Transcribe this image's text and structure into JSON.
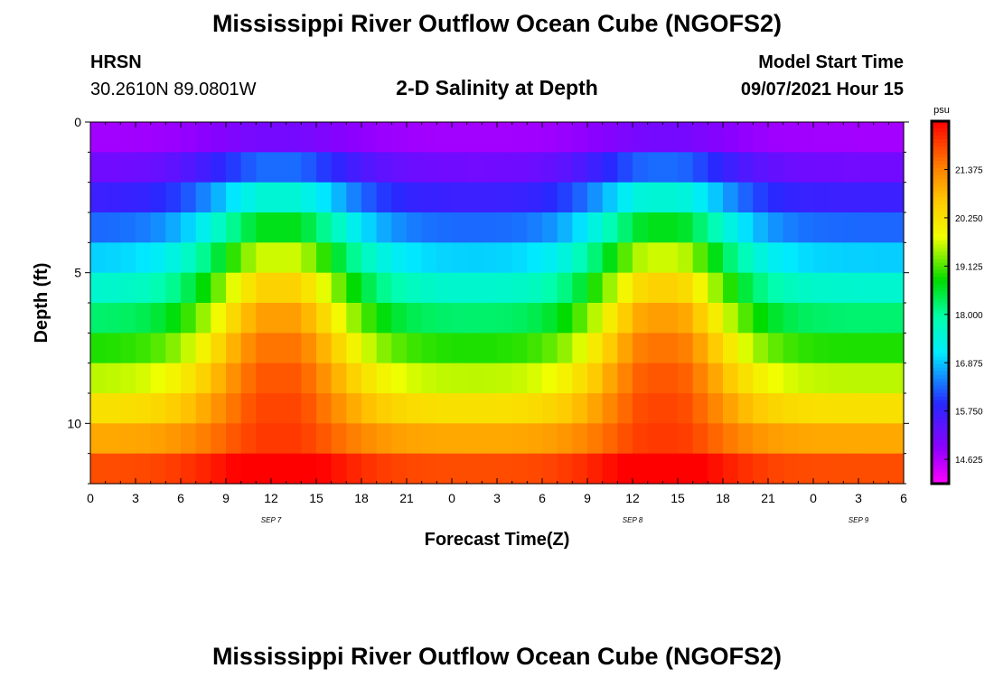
{
  "header": {
    "title": "Mississippi River Outflow Ocean Cube (NGOFS2)",
    "station": "HRSN",
    "coords": "30.2610N  89.0801W",
    "subtitle": "2-D Salinity at Depth",
    "model_label": "Model Start Time",
    "model_time": "09/07/2021 Hour 15"
  },
  "footer": {
    "title": "Mississippi River Outflow Ocean Cube (NGOFS2)"
  },
  "chart_data": {
    "type": "heatmap",
    "title": "2-D Salinity at Depth",
    "xlabel": "Forecast Time(Z)",
    "ylabel": "Depth (ft)",
    "x_range_hours": [
      0,
      54
    ],
    "x_tick_labels": [
      "0",
      "3",
      "6",
      "9",
      "12",
      "15",
      "18",
      "21",
      "0",
      "3",
      "6",
      "9",
      "12",
      "15",
      "18",
      "21",
      "0",
      "3",
      "6"
    ],
    "date_labels": [
      {
        "label": "SEP 7",
        "hour": 12
      },
      {
        "label": "SEP 8",
        "hour": 36
      },
      {
        "label": "SEP 9",
        "hour": 51
      }
    ],
    "y_range": [
      0,
      12
    ],
    "y_tick_labels": [
      {
        "label": "0",
        "value": 0
      },
      {
        "label": "5",
        "value": 5
      },
      {
        "label": "10",
        "value": 10
      }
    ],
    "colorbar": {
      "unit": "psu",
      "min": 14.06,
      "max": 22.5,
      "tick_labels": [
        "14.625",
        "15.750",
        "16.875",
        "18.000",
        "19.125",
        "20.250",
        "21.375"
      ]
    },
    "depth_layers": 12,
    "time_steps": 54
  }
}
